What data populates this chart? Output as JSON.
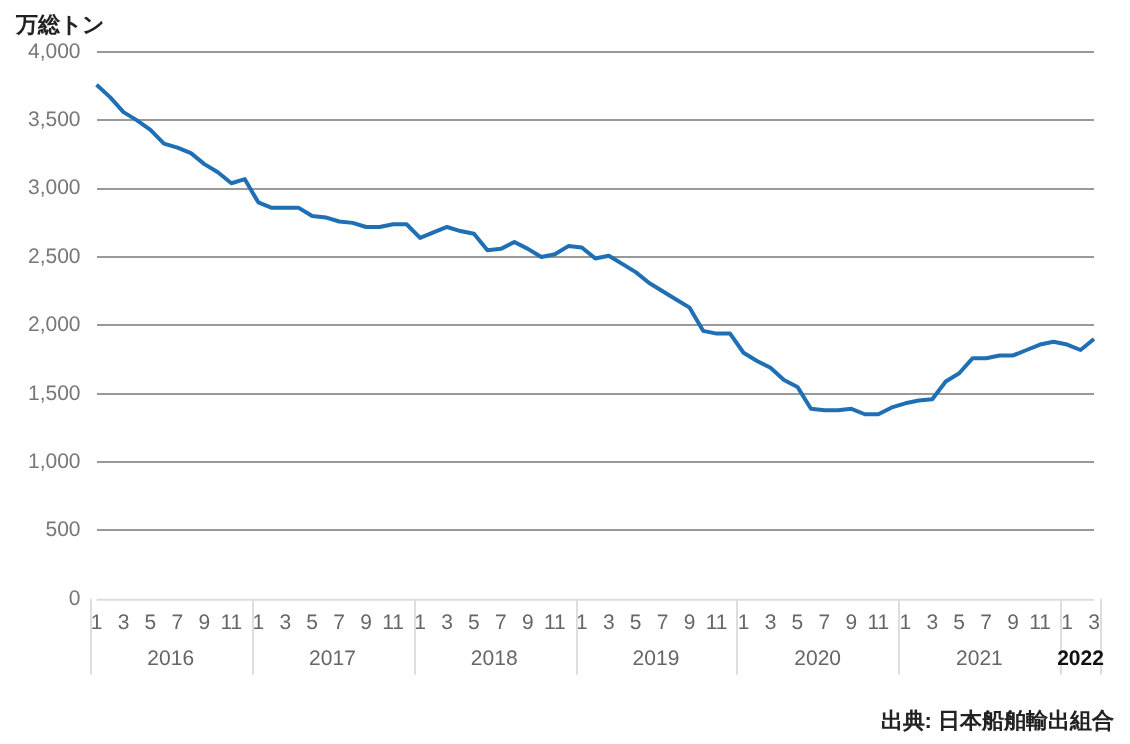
{
  "chart_data": {
    "type": "line",
    "ylabel": "万総トン",
    "categories": [
      "1",
      null,
      "3",
      null,
      "5",
      null,
      "7",
      null,
      "9",
      null,
      "11",
      null,
      "1",
      null,
      "3",
      null,
      "5",
      null,
      "7",
      null,
      "9",
      null,
      "11",
      null,
      "1",
      null,
      "3",
      null,
      "5",
      null,
      "7",
      null,
      "9",
      null,
      "11",
      null,
      "1",
      null,
      "3",
      null,
      "5",
      null,
      "7",
      null,
      "9",
      null,
      "11",
      null,
      "1",
      null,
      "3",
      null,
      "5",
      null,
      "7",
      null,
      "9",
      null,
      "11",
      null,
      "1",
      null,
      "3",
      null,
      "5",
      null,
      "7",
      null,
      "9",
      null,
      "11",
      null,
      "1",
      null,
      "3"
    ],
    "series": [
      {
        "color": "#1f6fb4",
        "values": [
          3760,
          3670,
          3560,
          3500,
          3430,
          3330,
          3300,
          3260,
          3180,
          3120,
          3040,
          3070,
          2900,
          2860,
          2860,
          2860,
          2800,
          2790,
          2760,
          2750,
          2720,
          2720,
          2740,
          2740,
          2640,
          2680,
          2720,
          2690,
          2670,
          2550,
          2560,
          2610,
          2560,
          2500,
          2520,
          2580,
          2570,
          2490,
          2510,
          2450,
          2390,
          2310,
          2250,
          2190,
          2130,
          1960,
          1940,
          1940,
          1800,
          1740,
          1690,
          1600,
          1550,
          1390,
          1380,
          1380,
          1390,
          1350,
          1350,
          1400,
          1430,
          1450,
          1460,
          1590,
          1650,
          1760,
          1760,
          1780,
          1780,
          1820,
          1860,
          1880,
          1860,
          1820,
          1900
        ]
      }
    ],
    "ylim": [
      0,
      4000
    ],
    "yticks": [
      0,
      500,
      {
        "value": 1000,
        "label": "1,000"
      },
      {
        "value": 1500,
        "label": "1,500"
      },
      {
        "value": 2000,
        "label": "2,000"
      },
      {
        "value": 2500,
        "label": "2,500"
      },
      {
        "value": 3000,
        "label": "3,000"
      },
      {
        "value": 3500,
        "label": "3,500"
      },
      {
        "value": 4000,
        "label": "4,000"
      }
    ],
    "grid": "y",
    "legend": false,
    "marker": "none",
    "line_style": "solid",
    "annotations": [
      "2016",
      "2017",
      "2018",
      "2019",
      "2020",
      "2021",
      "2022",
      "出典: 日本船舶輸出組合"
    ]
  }
}
